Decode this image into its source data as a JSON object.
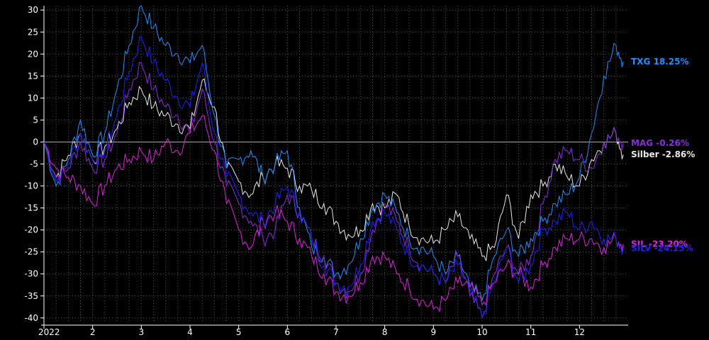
{
  "chart_data": {
    "type": "line",
    "title": "",
    "xlabel": "",
    "ylabel": "",
    "unit": "%",
    "ylim": [
      -41,
      31
    ],
    "yticks": [
      30,
      25,
      20,
      15,
      10,
      5,
      0,
      -5,
      -10,
      -15,
      -20,
      -25,
      -30,
      -35,
      -40
    ],
    "xlim": [
      0,
      12
    ],
    "xticks": [
      {
        "x": 0,
        "label": "2022"
      },
      {
        "x": 1,
        "label": "2"
      },
      {
        "x": 2,
        "label": "3"
      },
      {
        "x": 3,
        "label": "4"
      },
      {
        "x": 4,
        "label": "5"
      },
      {
        "x": 5,
        "label": "6"
      },
      {
        "x": 6,
        "label": "7"
      },
      {
        "x": 7,
        "label": "8"
      },
      {
        "x": 8,
        "label": "9"
      },
      {
        "x": 9,
        "label": "10"
      },
      {
        "x": 10,
        "label": "11"
      },
      {
        "x": 11,
        "label": "12"
      }
    ],
    "grid": true,
    "zero_line": true,
    "series": [
      {
        "label": "Silber -2.86%",
        "color": "#e8e8e8",
        "x": [
          0,
          0.25,
          0.5,
          0.75,
          1,
          1.25,
          1.5,
          1.75,
          2,
          2.25,
          2.5,
          2.75,
          3,
          3.25,
          3.5,
          3.75,
          4,
          4.25,
          4.5,
          4.75,
          5,
          5.25,
          5.5,
          5.75,
          6,
          6.25,
          6.5,
          6.75,
          7,
          7.25,
          7.5,
          7.75,
          8,
          8.25,
          8.5,
          8.75,
          9,
          9.25,
          9.5,
          9.75,
          10,
          10.25,
          10.5,
          10.75,
          11,
          11.25,
          11.5,
          11.75,
          11.9
        ],
        "y": [
          0,
          -8,
          -3,
          2,
          -4,
          -1,
          3,
          9,
          12,
          8,
          6,
          4,
          3,
          14,
          8,
          -6,
          -9,
          -12,
          -8,
          -5,
          -6,
          -10,
          -11,
          -14,
          -18,
          -21,
          -20,
          -14,
          -15,
          -12,
          -19,
          -22,
          -23,
          -20,
          -17,
          -22,
          -26,
          -24,
          -12,
          -22,
          -12,
          -10,
          -5,
          -8,
          -10,
          -4,
          0,
          2,
          -2.86
        ]
      },
      {
        "label": "TXG 18.25%",
        "color": "#1e90ff",
        "x": [
          0,
          0.25,
          0.5,
          0.75,
          1,
          1.25,
          1.5,
          1.75,
          2,
          2.25,
          2.5,
          2.75,
          3,
          3.25,
          3.5,
          3.75,
          4,
          4.25,
          4.5,
          4.75,
          5,
          5.25,
          5.5,
          5.75,
          6,
          6.25,
          6.5,
          6.75,
          7,
          7.25,
          7.5,
          7.75,
          8,
          8.25,
          8.5,
          8.75,
          9,
          9.25,
          9.5,
          9.75,
          10,
          10.25,
          10.5,
          10.75,
          11,
          11.25,
          11.5,
          11.75,
          11.9
        ],
        "y": [
          0,
          -10,
          -4,
          5,
          -3,
          2,
          12,
          22,
          31,
          26,
          22,
          20,
          18,
          22,
          6,
          -6,
          -4,
          -2,
          -8,
          -5,
          -2,
          -15,
          -24,
          -26,
          -30,
          -28,
          -22,
          -15,
          -12,
          -16,
          -22,
          -24,
          -26,
          -30,
          -26,
          -33,
          -36,
          -26,
          -20,
          -26,
          -22,
          -18,
          -14,
          -12,
          -8,
          2,
          15,
          22,
          18.25
        ]
      },
      {
        "label": "MAG -0.26%",
        "color": "#8a2be2",
        "x": [
          0,
          0.25,
          0.5,
          0.75,
          1,
          1.25,
          1.5,
          1.75,
          2,
          2.25,
          2.5,
          2.75,
          3,
          3.25,
          3.5,
          3.75,
          4,
          4.25,
          4.5,
          4.75,
          5,
          5.25,
          5.5,
          5.75,
          6,
          6.25,
          6.5,
          6.75,
          7,
          7.25,
          7.5,
          7.75,
          8,
          8.25,
          8.5,
          8.75,
          9,
          9.25,
          9.5,
          9.75,
          10,
          10.25,
          10.5,
          10.75,
          11,
          11.25,
          11.5,
          11.75,
          11.9
        ],
        "y": [
          0,
          -8,
          -6,
          0,
          -6,
          -4,
          2,
          12,
          18,
          12,
          8,
          6,
          2,
          12,
          0,
          -10,
          -14,
          -18,
          -22,
          -20,
          -12,
          -16,
          -22,
          -26,
          -32,
          -34,
          -30,
          -20,
          -14,
          -18,
          -24,
          -28,
          -30,
          -32,
          -26,
          -35,
          -40,
          -30,
          -24,
          -30,
          -26,
          -14,
          -4,
          -2,
          -4,
          -6,
          0,
          2,
          -0.26
        ]
      },
      {
        "label": "SIL -23.20%",
        "color": "#e020e0",
        "x": [
          0,
          0.25,
          0.5,
          0.75,
          1,
          1.25,
          1.5,
          1.75,
          2,
          2.25,
          2.5,
          2.75,
          3,
          3.25,
          3.5,
          3.75,
          4,
          4.25,
          4.5,
          4.75,
          5,
          5.25,
          5.5,
          5.75,
          6,
          6.25,
          6.5,
          6.75,
          7,
          7.25,
          7.5,
          7.75,
          8,
          8.25,
          8.5,
          8.75,
          9,
          9.25,
          9.5,
          9.75,
          10,
          10.25,
          10.5,
          10.75,
          11,
          11.25,
          11.5,
          11.75,
          11.9
        ],
        "y": [
          0,
          -6,
          -8,
          -10,
          -14,
          -10,
          -6,
          -4,
          -2,
          -4,
          0,
          -2,
          2,
          6,
          -2,
          -14,
          -20,
          -24,
          -18,
          -16,
          -18,
          -22,
          -26,
          -30,
          -34,
          -35,
          -32,
          -26,
          -26,
          -30,
          -33,
          -36,
          -38,
          -36,
          -32,
          -33,
          -37,
          -32,
          -28,
          -30,
          -33,
          -28,
          -24,
          -22,
          -22,
          -22,
          -24,
          -22,
          -23.2
        ]
      },
      {
        "label": "SILV -24.15%",
        "color": "#2020ff",
        "x": [
          0,
          0.25,
          0.5,
          0.75,
          1,
          1.25,
          1.5,
          1.75,
          2,
          2.25,
          2.5,
          2.75,
          3,
          3.25,
          3.5,
          3.75,
          4,
          4.25,
          4.5,
          4.75,
          5,
          5.25,
          5.5,
          5.75,
          6,
          6.25,
          6.5,
          6.75,
          7,
          7.25,
          7.5,
          7.75,
          8,
          8.25,
          8.5,
          8.75,
          9,
          9.25,
          9.5,
          9.75,
          10,
          10.25,
          10.5,
          10.75,
          11,
          11.25,
          11.5,
          11.75,
          11.9
        ],
        "y": [
          0,
          -9,
          -5,
          2,
          -4,
          -2,
          6,
          16,
          24,
          18,
          14,
          10,
          8,
          18,
          2,
          -8,
          -12,
          -16,
          -18,
          -14,
          -10,
          -16,
          -22,
          -28,
          -32,
          -33,
          -28,
          -18,
          -16,
          -20,
          -26,
          -28,
          -30,
          -32,
          -28,
          -34,
          -40,
          -32,
          -24,
          -32,
          -28,
          -20,
          -18,
          -16,
          -20,
          -18,
          -22,
          -22,
          -24.15
        ]
      }
    ],
    "end_labels": [
      {
        "text": "TXG 18.25%",
        "color": "#1e90ff",
        "y": 18.25
      },
      {
        "text": "Silber -2.86%",
        "color": "#e8e8e8",
        "y": -2.86
      },
      {
        "text": "MAG -0.26%",
        "color": "#8a2be2",
        "y": -0.26
      },
      {
        "text": "SIL -23.20%",
        "color": "#e020e0",
        "y": -23.2
      },
      {
        "text": "SILV -24.15%",
        "color": "#2020ff",
        "y": -24.15
      }
    ]
  }
}
